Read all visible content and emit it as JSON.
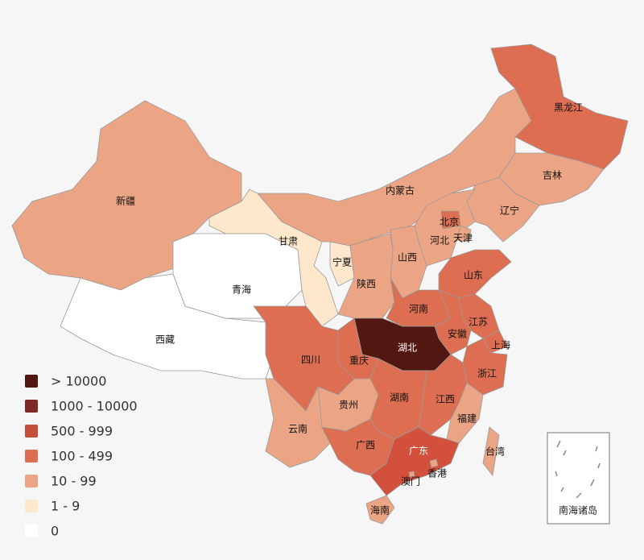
{
  "legend": [
    {
      "label": "> 10000",
      "color": "#521711"
    },
    {
      "label": "1000 - 10000",
      "color": "#7e2b24"
    },
    {
      "label": "500 - 999",
      "color": "#c4503a"
    },
    {
      "label": "100 - 499",
      "color": "#dd6e52"
    },
    {
      "label": "10 - 99",
      "color": "#eca584"
    },
    {
      "label": "1 - 9",
      "color": "#fde8cc"
    },
    {
      "label": "0",
      "color": "#ffffff"
    }
  ],
  "regions": [
    {
      "name": "新疆",
      "color": "#eca584"
    },
    {
      "name": "西藏",
      "color": "#ffffff"
    },
    {
      "name": "青海",
      "color": "#ffffff"
    },
    {
      "name": "甘肃",
      "color": "#fde8cc"
    },
    {
      "name": "宁夏",
      "color": "#fde8cc"
    },
    {
      "name": "内蒙古",
      "color": "#eca584"
    },
    {
      "name": "黑龙江",
      "color": "#dd6e52"
    },
    {
      "name": "吉林",
      "color": "#eca584"
    },
    {
      "name": "辽宁",
      "color": "#eca584"
    },
    {
      "name": "河北",
      "color": "#eca584"
    },
    {
      "name": "北京",
      "color": "#dd6e52"
    },
    {
      "name": "天津",
      "color": "#eca584"
    },
    {
      "name": "山西",
      "color": "#eca584"
    },
    {
      "name": "陕西",
      "color": "#eca584"
    },
    {
      "name": "山东",
      "color": "#dd6e52"
    },
    {
      "name": "河南",
      "color": "#dd6e52"
    },
    {
      "name": "江苏",
      "color": "#dd6e52"
    },
    {
      "name": "安徽",
      "color": "#dd6e52"
    },
    {
      "name": "上海",
      "color": "#dd6e52"
    },
    {
      "name": "浙江",
      "color": "#dd6e52"
    },
    {
      "name": "湖北",
      "color": "#521711"
    },
    {
      "name": "重庆",
      "color": "#dd6e52"
    },
    {
      "name": "四川",
      "color": "#dd6e52"
    },
    {
      "name": "贵州",
      "color": "#eca584"
    },
    {
      "name": "云南",
      "color": "#eca584"
    },
    {
      "name": "湖南",
      "color": "#dd6e52"
    },
    {
      "name": "江西",
      "color": "#dd6e52"
    },
    {
      "name": "福建",
      "color": "#eca584"
    },
    {
      "name": "广西",
      "color": "#dd6e52"
    },
    {
      "name": "广东",
      "color": "#d2503c"
    },
    {
      "name": "海南",
      "color": "#eca584"
    },
    {
      "name": "台湾",
      "color": "#eca584"
    },
    {
      "name": "香港",
      "color": "#eca584"
    },
    {
      "name": "澳门",
      "color": "#eca584"
    }
  ],
  "inset_label": "南海诸岛"
}
